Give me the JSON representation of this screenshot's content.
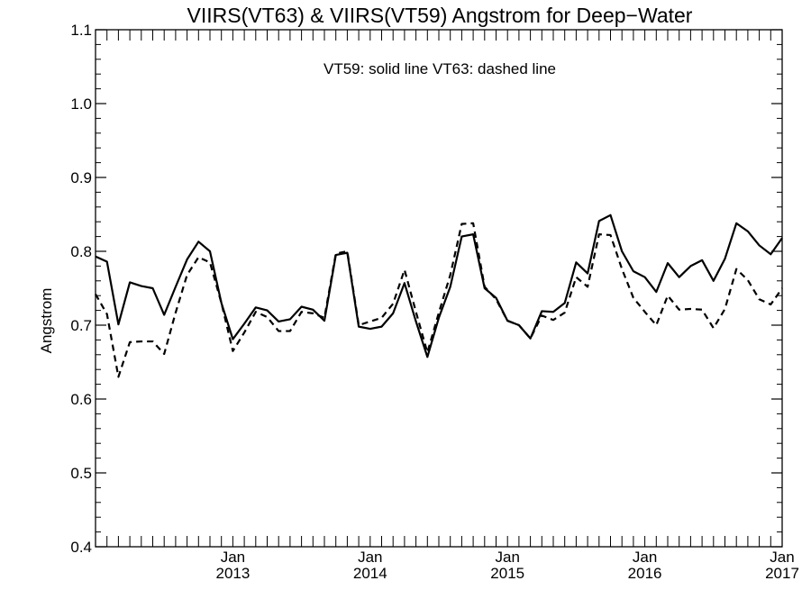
{
  "chart_data": {
    "type": "line",
    "title": "VIIRS(VT63) & VIIRS(VT59)  Angstrom for Deep−Water",
    "annotation": "VT59: solid line   VT63: dashed line",
    "ylabel": "Angstrom",
    "xlabel": "",
    "ylim": [
      0.4,
      1.1
    ],
    "yticks": [
      "0.4",
      "0.5",
      "0.6",
      "0.7",
      "0.8",
      "0.9",
      "1.0",
      "1.1"
    ],
    "xlim": [
      "2012-01",
      "2017-01"
    ],
    "xticks": [
      {
        "month": "Jan",
        "year": "2013",
        "date": "2013-01"
      },
      {
        "month": "Jan",
        "year": "2014",
        "date": "2014-01"
      },
      {
        "month": "Jan",
        "year": "2015",
        "date": "2015-01"
      },
      {
        "month": "Jan",
        "year": "2016",
        "date": "2016-01"
      },
      {
        "month": "Jan",
        "year": "2017",
        "date": "2017-01"
      }
    ],
    "grid": false,
    "x": [
      "2012-01",
      "2012-02",
      "2012-03",
      "2012-04",
      "2012-05",
      "2012-06",
      "2012-07",
      "2012-08",
      "2012-09",
      "2012-10",
      "2012-11",
      "2012-12",
      "2013-01",
      "2013-02",
      "2013-03",
      "2013-04",
      "2013-05",
      "2013-06",
      "2013-07",
      "2013-08",
      "2013-09",
      "2013-10",
      "2013-11",
      "2013-12",
      "2014-01",
      "2014-02",
      "2014-03",
      "2014-04",
      "2014-05",
      "2014-06",
      "2014-07",
      "2014-08",
      "2014-09",
      "2014-10",
      "2014-11",
      "2014-12",
      "2015-01",
      "2015-02",
      "2015-03",
      "2015-04",
      "2015-05",
      "2015-06",
      "2015-07",
      "2015-08",
      "2015-09",
      "2015-10",
      "2015-11",
      "2015-12",
      "2016-01",
      "2016-02",
      "2016-03",
      "2016-04",
      "2016-05",
      "2016-06",
      "2016-07",
      "2016-08",
      "2016-09",
      "2016-10",
      "2016-11",
      "2016-12",
      "2017-01"
    ],
    "series": [
      {
        "name": "VT59",
        "style": "solid",
        "color": "#000000",
        "values": [
          0.793,
          0.786,
          0.701,
          0.758,
          0.753,
          0.75,
          0.714,
          0.752,
          0.789,
          0.813,
          0.8,
          0.73,
          0.681,
          0.702,
          0.724,
          0.72,
          0.705,
          0.708,
          0.725,
          0.721,
          0.706,
          0.795,
          0.798,
          0.698,
          0.695,
          0.698,
          0.716,
          0.757,
          0.705,
          0.657,
          0.71,
          0.752,
          0.82,
          0.823,
          0.75,
          0.737,
          0.706,
          0.7,
          0.682,
          0.719,
          0.718,
          0.73,
          0.785,
          0.77,
          0.841,
          0.849,
          0.8,
          0.773,
          0.765,
          0.745,
          0.784,
          0.765,
          0.78,
          0.788,
          0.76,
          0.79,
          0.838,
          0.827,
          0.808,
          0.796,
          0.818
        ]
      },
      {
        "name": "VT63",
        "style": "dashed",
        "color": "#000000",
        "values": [
          0.742,
          0.715,
          0.63,
          0.677,
          0.678,
          0.678,
          0.661,
          0.717,
          0.768,
          0.792,
          0.785,
          0.73,
          0.665,
          0.69,
          0.718,
          0.711,
          0.692,
          0.692,
          0.718,
          0.716,
          0.71,
          0.797,
          0.8,
          0.7,
          0.705,
          0.71,
          0.729,
          0.775,
          0.718,
          0.663,
          0.717,
          0.768,
          0.837,
          0.838,
          0.752,
          0.735,
          0.706,
          0.7,
          0.682,
          0.713,
          0.707,
          0.717,
          0.765,
          0.752,
          0.823,
          0.822,
          0.776,
          0.737,
          0.718,
          0.7,
          0.74,
          0.721,
          0.722,
          0.721,
          0.696,
          0.722,
          0.776,
          0.761,
          0.735,
          0.728,
          0.75
        ]
      }
    ]
  }
}
